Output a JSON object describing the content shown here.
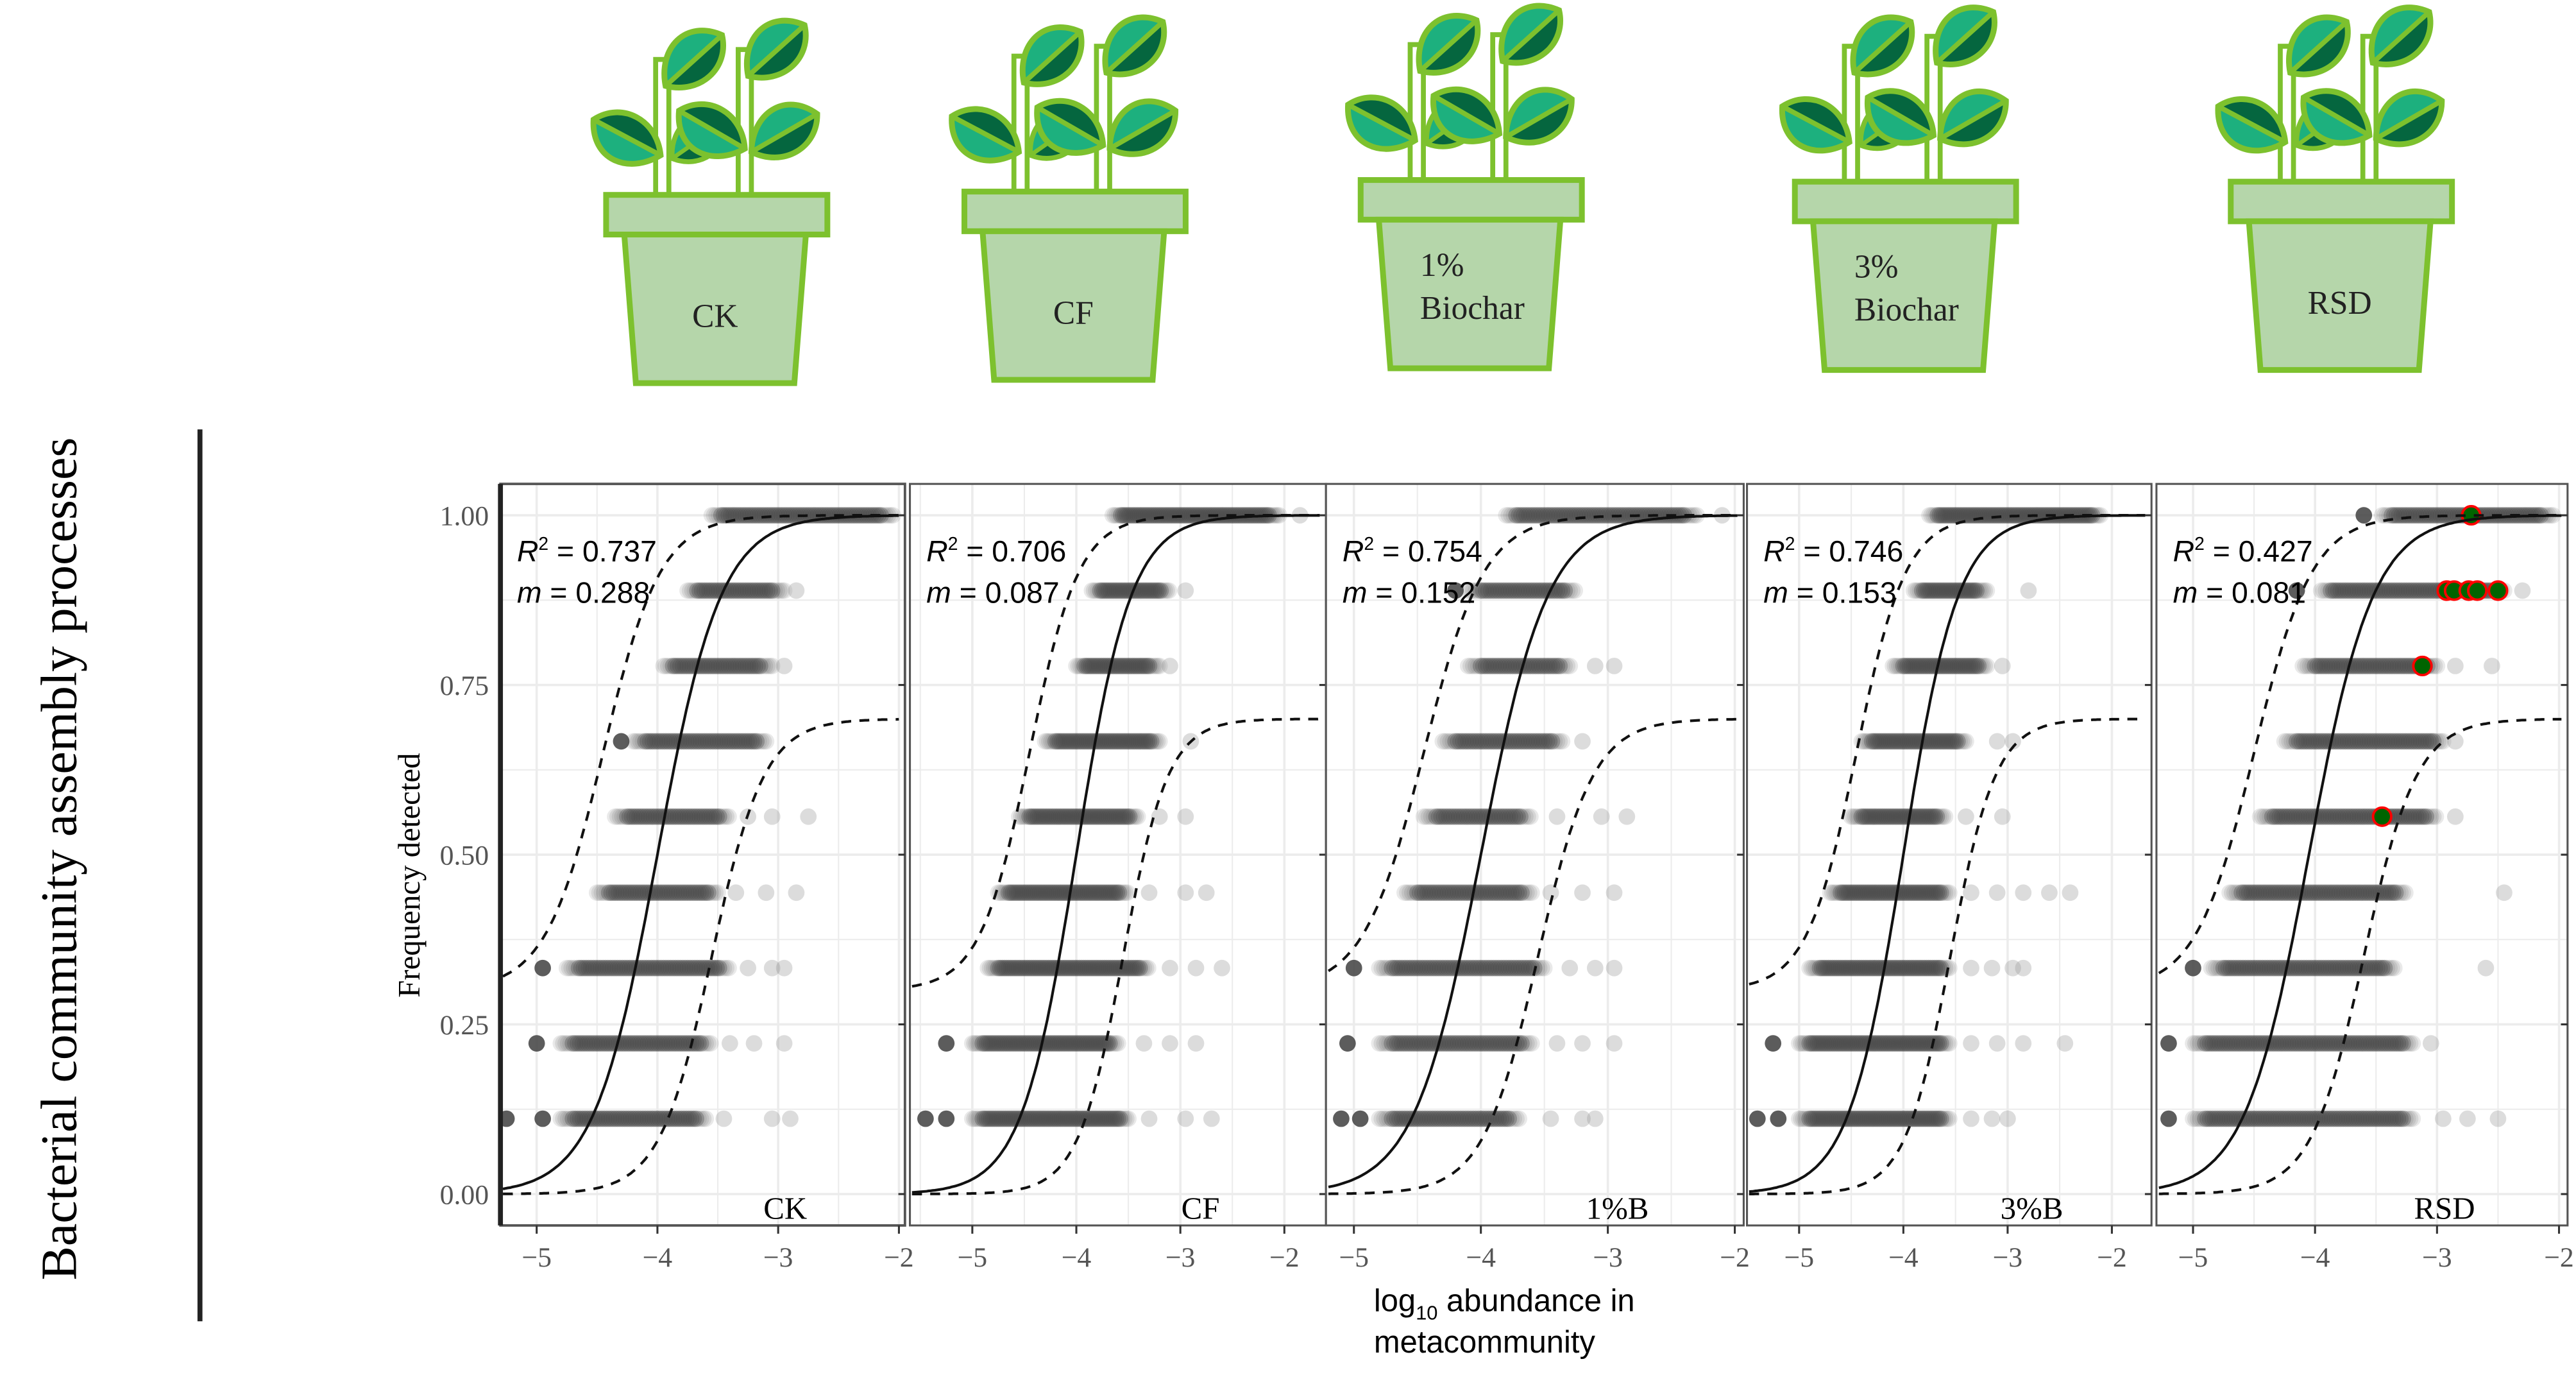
{
  "figure": {
    "side_label": "Bacterial community assembly processes",
    "pots": [
      {
        "lines": [
          "CK"
        ]
      },
      {
        "lines": [
          "CF"
        ]
      },
      {
        "lines": [
          "1%",
          "Biochar"
        ]
      },
      {
        "lines": [
          "3%",
          "Biochar"
        ]
      },
      {
        "lines": [
          "RSD"
        ]
      }
    ],
    "colors": {
      "leaf_light": "#1db07e",
      "leaf_dark": "#05663f",
      "outline": "#7dc12e",
      "pot_fill": "#b5d6aa",
      "point": "#4a4a4a",
      "highlight_fill": "#006400",
      "highlight_stroke": "#ff0000"
    }
  },
  "chart_data": {
    "type": "scatter",
    "title": "",
    "ylabel": "Frequency detected",
    "xlabel_main": "log",
    "xlabel_sub": "10",
    "xlabel_rest": " abundance in",
    "xlabel_line2": "metacommunity",
    "ylim": [
      -0.04,
      1.05
    ],
    "yticks": [
      0,
      0.25,
      0.5,
      0.75,
      1
    ],
    "ytick_labels": [
      "0.00",
      "0.25",
      "0.50",
      "0.75",
      "1.00"
    ],
    "xticks": [
      -5,
      -4,
      -3,
      -2
    ],
    "xtick_labels": [
      "−5",
      "−4",
      "−3",
      "−2"
    ],
    "grid": true,
    "panels": [
      {
        "name": "CK",
        "r2_label": "R",
        "r2_value": " = 0.737",
        "m_label": "m",
        "m_value": " = 0.288",
        "xlim": [
          -5.3,
          -1.95
        ],
        "fit": {
          "x0": -4.0,
          "k": 3.8
        },
        "upper": {
          "x0": -4.45,
          "k": 4.2,
          "floor": 0.3
        },
        "lower": {
          "x0": -3.55,
          "k": 4.6,
          "cap": 0.7
        },
        "rows": [
          [
            1.0,
            -3.55,
            -2.05,
            []
          ],
          [
            0.889,
            -3.75,
            -2.95,
            [
              -2.85
            ]
          ],
          [
            0.778,
            -3.95,
            -3.05,
            [
              -2.95
            ]
          ],
          [
            0.667,
            -4.2,
            -3.1,
            [
              -4.3
            ]
          ],
          [
            0.556,
            -4.35,
            -3.4,
            [
              -3.25,
              -3.05,
              -2.75
            ]
          ],
          [
            0.444,
            -4.5,
            -3.5,
            [
              -3.35,
              -3.1,
              -2.85
            ]
          ],
          [
            0.333,
            -4.75,
            -3.4,
            [
              -4.95,
              -3.25,
              -3.05,
              -2.95
            ]
          ],
          [
            0.222,
            -4.8,
            -3.55,
            [
              -5.0,
              -3.4,
              -3.2,
              -2.95
            ]
          ],
          [
            0.111,
            -4.8,
            -3.6,
            [
              -5.25,
              -4.95,
              -3.45,
              -3.05,
              -2.9
            ]
          ]
        ],
        "highlights": []
      },
      {
        "name": "CF",
        "r2_label": "R",
        "r2_value": " = 0.706",
        "m_label": "m",
        "m_value": " = 0.087",
        "xlim": [
          -5.6,
          -1.6
        ],
        "fit": {
          "x0": -4.0,
          "k": 3.8
        },
        "upper": {
          "x0": -4.45,
          "k": 4.2,
          "floor": 0.3
        },
        "lower": {
          "x0": -3.55,
          "k": 4.6,
          "cap": 0.7
        },
        "rows": [
          [
            1.0,
            -3.65,
            -2.05,
            [
              -1.85
            ]
          ],
          [
            0.889,
            -3.85,
            -3.1,
            [
              -2.95
            ]
          ],
          [
            0.778,
            -4.0,
            -3.2,
            [
              -3.1
            ]
          ],
          [
            0.667,
            -4.3,
            -3.2,
            [
              -2.9
            ]
          ],
          [
            0.556,
            -4.55,
            -3.4,
            [
              -3.2,
              -2.95
            ]
          ],
          [
            0.444,
            -4.75,
            -3.5,
            [
              -3.3,
              -2.95,
              -2.75
            ]
          ],
          [
            0.333,
            -4.85,
            -3.3,
            [
              -3.1,
              -2.85,
              -2.6
            ]
          ],
          [
            0.222,
            -5.0,
            -3.6,
            [
              -5.25,
              -3.35,
              -3.1,
              -2.85
            ]
          ],
          [
            0.111,
            -5.0,
            -3.5,
            [
              -5.45,
              -5.25,
              -3.3,
              -2.95,
              -2.7
            ]
          ]
        ],
        "highlights": []
      },
      {
        "name": "1%B",
        "r2_label": "R",
        "r2_value": " = 0.754",
        "m_label": "m",
        "m_value": " = 0.152",
        "xlim": [
          -5.22,
          -1.93
        ],
        "fit": {
          "x0": -4.0,
          "k": 3.8
        },
        "upper": {
          "x0": -4.45,
          "k": 4.2,
          "floor": 0.3
        },
        "lower": {
          "x0": -3.55,
          "k": 4.6,
          "cap": 0.7
        },
        "rows": [
          [
            1.0,
            -3.8,
            -2.3,
            [
              -2.1
            ]
          ],
          [
            0.889,
            -4.1,
            -3.25,
            [
              -4.2
            ]
          ],
          [
            0.778,
            -4.1,
            -3.3,
            [
              -3.1,
              -2.95
            ]
          ],
          [
            0.667,
            -4.3,
            -3.35,
            [
              -3.2
            ]
          ],
          [
            0.556,
            -4.45,
            -3.6,
            [
              -3.4,
              -3.05,
              -2.85
            ]
          ],
          [
            0.444,
            -4.6,
            -3.6,
            [
              -3.45,
              -3.2,
              -2.95
            ]
          ],
          [
            0.333,
            -4.8,
            -3.5,
            [
              -5.0,
              -3.3,
              -3.1,
              -2.95
            ]
          ],
          [
            0.222,
            -4.8,
            -3.6,
            [
              -5.05,
              -3.4,
              -3.2,
              -2.95
            ]
          ],
          [
            0.111,
            -4.8,
            -3.7,
            [
              -5.1,
              -4.95,
              -3.45,
              -3.2,
              -3.1
            ]
          ]
        ],
        "highlights": []
      },
      {
        "name": "3%B",
        "r2_label": "R",
        "r2_value": " = 0.746",
        "m_label": "m",
        "m_value": " = 0.153",
        "xlim": [
          -5.5,
          -1.62
        ],
        "fit": {
          "x0": -4.0,
          "k": 3.8
        },
        "upper": {
          "x0": -4.45,
          "k": 4.2,
          "floor": 0.3
        },
        "lower": {
          "x0": -3.55,
          "k": 4.6,
          "cap": 0.7
        },
        "rows": [
          [
            1.0,
            -3.75,
            -2.1,
            []
          ],
          [
            0.889,
            -3.9,
            -3.2,
            [
              -2.8
            ]
          ],
          [
            0.778,
            -4.1,
            -3.2,
            [
              -3.05
            ]
          ],
          [
            0.667,
            -4.4,
            -3.4,
            [
              -3.1,
              -2.95
            ]
          ],
          [
            0.556,
            -4.5,
            -3.6,
            [
              -3.4,
              -3.05
            ]
          ],
          [
            0.444,
            -4.7,
            -3.55,
            [
              -3.35,
              -3.1,
              -2.85,
              -2.6,
              -2.4
            ]
          ],
          [
            0.333,
            -4.9,
            -3.55,
            [
              -3.35,
              -3.15,
              -2.95,
              -2.85
            ]
          ],
          [
            0.222,
            -5.0,
            -3.55,
            [
              -5.25,
              -3.35,
              -3.1,
              -2.85,
              -2.45
            ]
          ],
          [
            0.111,
            -5.0,
            -3.55,
            [
              -5.4,
              -5.2,
              -3.35,
              -3.15,
              -3.0
            ]
          ]
        ],
        "highlights": []
      },
      {
        "name": "RSD",
        "r2_label": "R",
        "r2_value": " = 0.427",
        "m_label": "m",
        "m_value": " = 0.081",
        "xlim": [
          -5.3,
          -1.93
        ],
        "fit": {
          "x0": -4.05,
          "k": 3.8
        },
        "upper": {
          "x0": -4.5,
          "k": 4.2,
          "floor": 0.3
        },
        "lower": {
          "x0": -3.6,
          "k": 4.6,
          "cap": 0.7
        },
        "rows": [
          [
            1.0,
            -3.45,
            -2.05,
            [
              -3.6
            ]
          ],
          [
            0.889,
            -3.95,
            -2.45,
            [
              -4.15,
              -2.3
            ]
          ],
          [
            0.778,
            -4.1,
            -3.0,
            [
              -2.85,
              -2.55
            ]
          ],
          [
            0.667,
            -4.25,
            -2.95,
            [
              -2.85
            ]
          ],
          [
            0.556,
            -4.45,
            -3.0,
            [
              -2.85
            ]
          ],
          [
            0.444,
            -4.7,
            -3.25,
            [
              -2.45
            ]
          ],
          [
            0.333,
            -4.85,
            -3.35,
            [
              -5.0,
              -2.6
            ]
          ],
          [
            0.222,
            -5.0,
            -3.2,
            [
              -5.2,
              -3.05
            ]
          ],
          [
            0.111,
            -5.0,
            -3.2,
            [
              -5.5,
              -5.2,
              -2.95,
              -2.75,
              -2.5
            ]
          ]
        ],
        "highlights": [
          [
            1.0,
            -2.72
          ],
          [
            0.889,
            -2.92
          ],
          [
            0.889,
            -2.86
          ],
          [
            0.889,
            -2.74
          ],
          [
            0.889,
            -2.67
          ],
          [
            0.889,
            -2.5
          ],
          [
            0.778,
            -3.12
          ],
          [
            0.556,
            -3.45
          ]
        ]
      }
    ]
  }
}
